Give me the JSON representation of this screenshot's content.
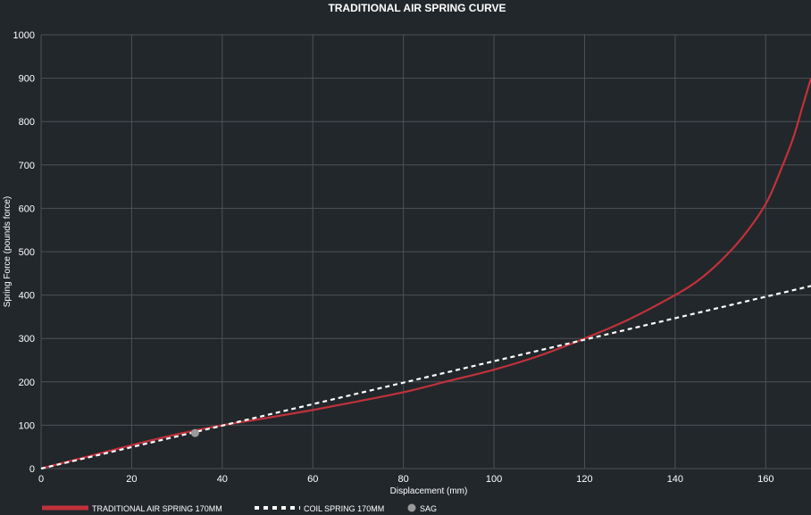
{
  "chart_data": {
    "type": "line",
    "title": "TRADITIONAL AIR SPRING CURVE",
    "xlabel": "Displacement (mm)",
    "ylabel": "Spring Force (pounds force)",
    "xlim": [
      0,
      170
    ],
    "ylim": [
      0,
      1000
    ],
    "x_ticks": [
      0,
      20,
      40,
      60,
      80,
      100,
      120,
      140,
      160
    ],
    "y_ticks": [
      0,
      100,
      200,
      300,
      400,
      500,
      600,
      700,
      800,
      900,
      1000
    ],
    "grid": true,
    "legend_position": "bottom-left",
    "series": [
      {
        "name": "TRADITIONAL AIR SPRING 170MM",
        "style": "solid",
        "color": "#c0313a",
        "x": [
          0,
          10,
          20,
          30,
          40,
          50,
          60,
          70,
          80,
          90,
          100,
          110,
          120,
          130,
          140,
          145,
          150,
          155,
          160,
          163,
          166,
          168,
          170
        ],
        "y": [
          0,
          27,
          54,
          79,
          100,
          117,
          135,
          155,
          176,
          202,
          228,
          260,
          300,
          345,
          400,
          433,
          478,
          535,
          610,
          680,
          760,
          830,
          900
        ]
      },
      {
        "name": "COIL SPRING 170MM",
        "style": "dashed",
        "color": "#ffffff",
        "x": [
          0,
          170
        ],
        "y": [
          0,
          421
        ]
      },
      {
        "name": "SAG",
        "style": "marker",
        "color": "#9a9a9a",
        "x": [
          34
        ],
        "y": [
          82
        ]
      }
    ]
  }
}
